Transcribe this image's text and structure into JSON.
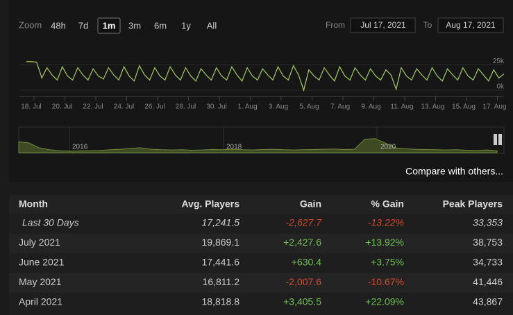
{
  "zoom": {
    "label": "Zoom",
    "options": [
      "48h",
      "7d",
      "1m",
      "3m",
      "6m",
      "1y",
      "All"
    ],
    "active": 2
  },
  "range": {
    "from_label": "From",
    "from": "Jul 17, 2021",
    "to_label": "To",
    "to": "Aug 17, 2021"
  },
  "chart_data": [
    {
      "type": "line",
      "color": "#9cc150",
      "ylim": [
        -2,
        34
      ],
      "yticks": [
        {
          "value": 25,
          "label": "25k"
        },
        {
          "value": 0,
          "label": "0k"
        }
      ],
      "x_labels": [
        "18. Jul",
        "20. Jul",
        "22. Jul",
        "24. Jul",
        "26. Jul",
        "28. Jul",
        "30. Jul",
        "1. Aug",
        "3. Aug",
        "5. Aug",
        "7. Aug",
        "9. Aug",
        "11. Aug",
        "13. Aug",
        "15. Aug",
        "17. Aug"
      ],
      "values": [
        28,
        28,
        27.5,
        12,
        22,
        15,
        10,
        23,
        14,
        10,
        22,
        15,
        10,
        21,
        14,
        11,
        22,
        15,
        10,
        23,
        14,
        9,
        24,
        15,
        10,
        22,
        14,
        10,
        23,
        15,
        10,
        22,
        14,
        9,
        21,
        15,
        10,
        22,
        14,
        10,
        23,
        15,
        9,
        22,
        14,
        10,
        21,
        15,
        10,
        23,
        14,
        10,
        24,
        15,
        0,
        20,
        14,
        10,
        22,
        15,
        9,
        23,
        14,
        10,
        22,
        15,
        10,
        21,
        14,
        10,
        20,
        15,
        1,
        22,
        14,
        10,
        21,
        15,
        10,
        22,
        14,
        9,
        21,
        15,
        10,
        22,
        14,
        10,
        21,
        15,
        9,
        20,
        12,
        16
      ]
    },
    {
      "type": "area",
      "color": "#6f8a3a",
      "fill": "#3d4a22",
      "ylim": [
        0,
        100
      ],
      "x_labels": [
        "2016",
        "2018",
        "2020"
      ],
      "values": [
        45,
        40,
        20,
        12,
        8,
        6,
        7,
        8,
        9,
        12,
        14,
        18,
        20,
        14,
        12,
        11,
        12,
        10,
        11,
        13,
        12,
        14,
        12,
        11,
        13,
        14,
        12,
        11,
        12,
        13,
        14,
        15,
        13,
        14,
        55,
        58,
        40,
        20,
        16,
        14,
        13,
        12,
        11,
        12,
        10,
        9,
        11,
        8
      ]
    }
  ],
  "compare": "Compare with others...",
  "table": {
    "header": [
      "Month",
      "Avg. Players",
      "Gain",
      "% Gain",
      "Peak Players"
    ],
    "rows": [
      [
        "Last 30 Days",
        "17,241.5",
        "-2,627.7",
        "-13.22%",
        "33,353"
      ],
      [
        "July 2021",
        "19,869.1",
        "+2,427.6",
        "+13.92%",
        "38,753"
      ],
      [
        "June 2021",
        "17,441.6",
        "+630.4",
        "+3.75%",
        "34,733"
      ],
      [
        "May 2021",
        "16,811.2",
        "-2,007.6",
        "-10.67%",
        "41,446"
      ],
      [
        "April 2021",
        "18,818.8",
        "+3,405.5",
        "+22.09%",
        "43,867"
      ]
    ]
  }
}
